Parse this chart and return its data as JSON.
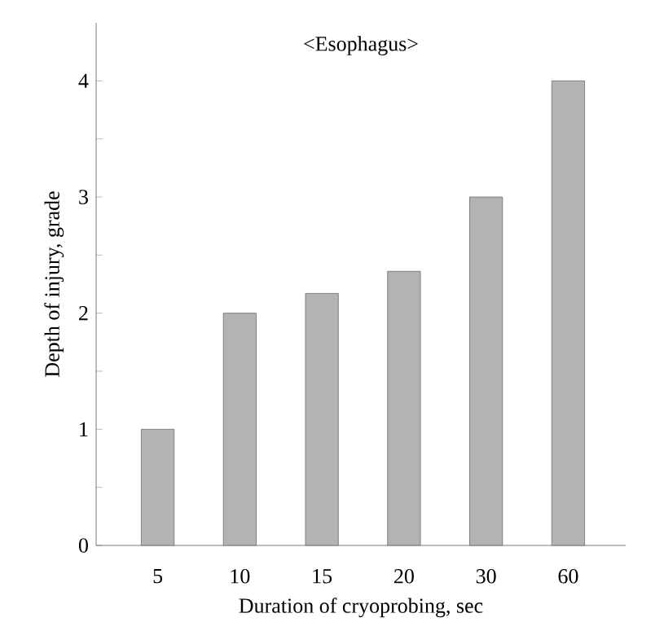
{
  "chart_data": {
    "type": "bar",
    "title": "<Esophagus>",
    "xlabel": "Duration of cryoprobing, sec",
    "ylabel": "Depth of injury, grade",
    "categories": [
      "5",
      "10",
      "15",
      "20",
      "30",
      "60"
    ],
    "values": [
      1.0,
      2.0,
      2.17,
      2.36,
      3.0,
      4.0
    ],
    "color": "#b3b3b3",
    "ylim": [
      0,
      4.5
    ],
    "yticks": [
      0,
      {
        "value": 0.5,
        "label": null
      },
      1,
      {
        "value": 1.5,
        "label": null
      },
      2,
      {
        "value": 2.5,
        "label": null
      },
      3,
      {
        "value": 3.5,
        "label": null
      },
      4
    ],
    "grid": false
  }
}
